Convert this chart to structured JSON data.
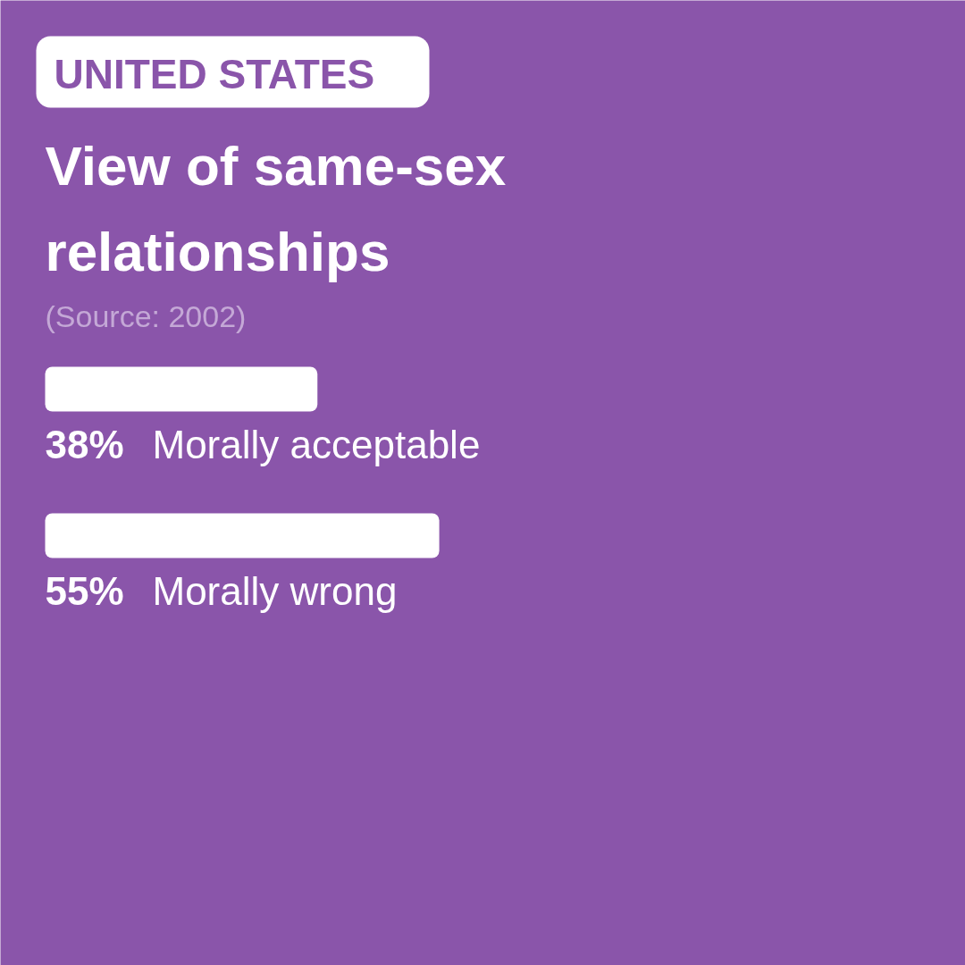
{
  "chart_data": {
    "type": "bar",
    "orientation": "horizontal",
    "title": "View of same-sex\nrelationships",
    "annotations": [
      "UNITED STATES",
      "(Source: 2002)"
    ],
    "categories": [
      "Morally acceptable",
      "Morally wrong"
    ],
    "values": [
      38,
      55
    ],
    "value_labels": [
      "38%",
      "55%"
    ],
    "color": "#ffffff"
  }
}
